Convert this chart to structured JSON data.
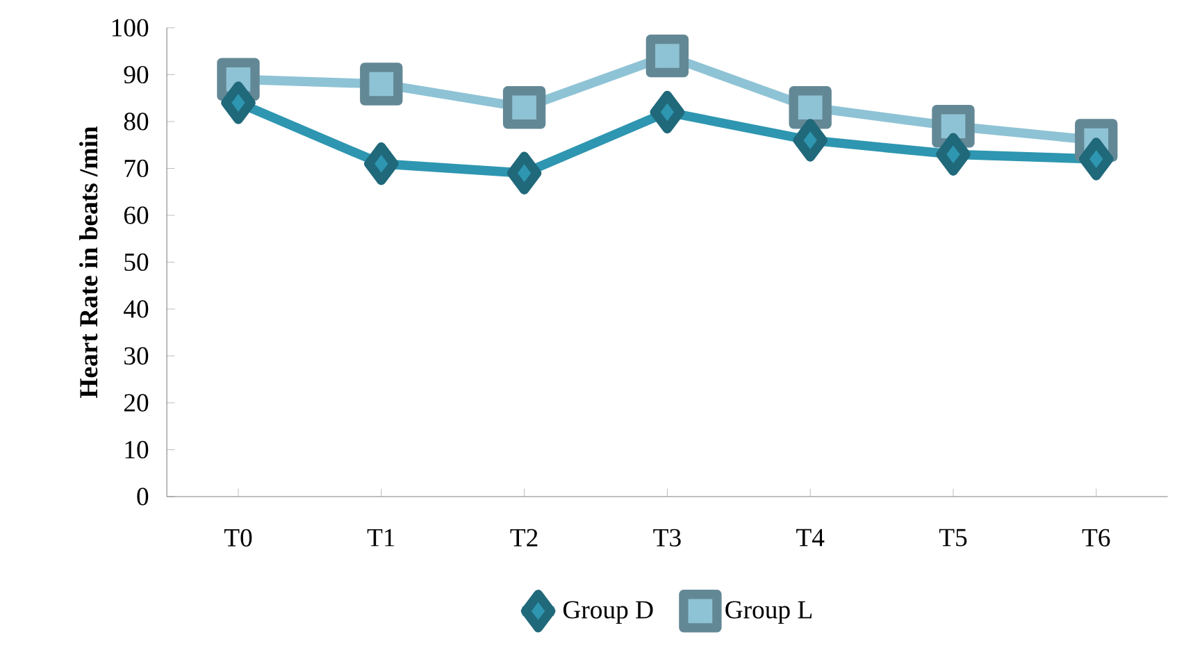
{
  "chart_data": {
    "type": "line",
    "ylabel": "Heart Rate in beats /min",
    "categories": [
      "T0",
      "T1",
      "T2",
      "T3",
      "T4",
      "T5",
      "T6"
    ],
    "series": [
      {
        "name": "Group D",
        "color": "#2e96b0",
        "marker": "diamond",
        "values": [
          84,
          71,
          69,
          82,
          76,
          73,
          72
        ]
      },
      {
        "name": "Group L",
        "color": "#8ec3d5",
        "marker": "square",
        "values": [
          89,
          88,
          83,
          94,
          83,
          79,
          76
        ]
      }
    ],
    "ylim": [
      0,
      100
    ],
    "yticks": [
      0,
      10,
      20,
      30,
      40,
      50,
      60,
      70,
      80,
      90,
      100
    ],
    "grid": false,
    "legend": "bottom",
    "line_style": "solid"
  }
}
